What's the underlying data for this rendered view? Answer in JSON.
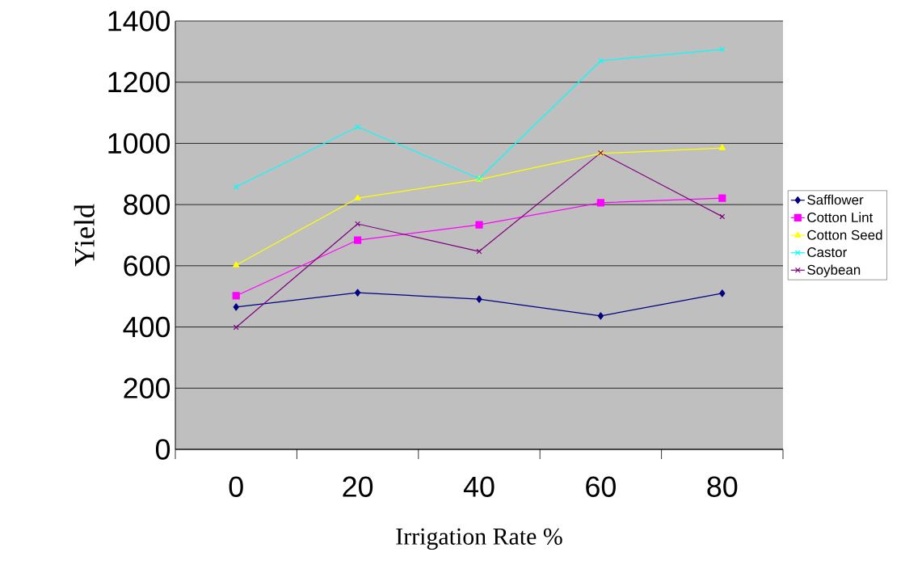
{
  "chart_data": {
    "type": "line",
    "xlabel": "Irrigation Rate %",
    "ylabel": "Yield",
    "categories": [
      "0",
      "20",
      "40",
      "60",
      "80"
    ],
    "series": [
      {
        "name": "Safflower",
        "color": "#000080",
        "marker": "diamond",
        "values": [
          465,
          512,
          491,
          436,
          510
        ]
      },
      {
        "name": "Cotton Lint",
        "color": "#ff00ff",
        "marker": "square",
        "values": [
          502,
          684,
          734,
          806,
          821
        ]
      },
      {
        "name": "Cotton Seed",
        "color": "#ffff00",
        "marker": "triangle",
        "values": [
          602,
          821,
          882,
          967,
          985
        ]
      },
      {
        "name": "Castor",
        "color": "#00ffff",
        "marker": "cross",
        "values": [
          858,
          1054,
          885,
          1270,
          1307
        ]
      },
      {
        "name": "Soybean",
        "color": "#800080",
        "marker": "cross",
        "values": [
          399,
          737,
          647,
          969,
          761
        ]
      }
    ],
    "ylim": [
      0,
      1400
    ],
    "yticks": [
      0,
      200,
      400,
      600,
      800,
      1000,
      1200,
      1400
    ],
    "grid": "y",
    "legend": "right",
    "line_style": "solid"
  }
}
